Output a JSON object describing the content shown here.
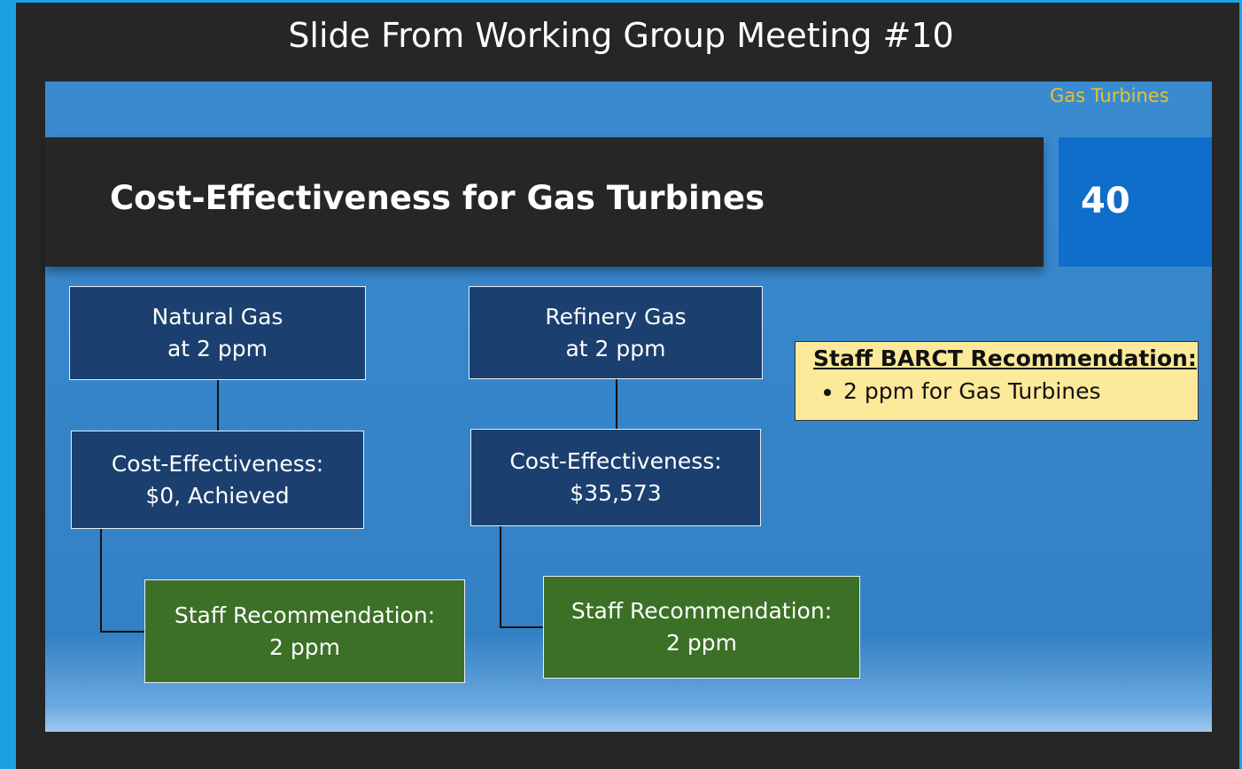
{
  "header": {
    "title": "Slide From Working Group Meeting #10"
  },
  "slide": {
    "tag": "Gas Turbines",
    "title": "Cost-Effectiveness for Gas Turbines",
    "number": "40",
    "nodes": [
      {
        "lines": [
          "Natural Gas",
          "at 2 ppm"
        ]
      },
      {
        "lines": [
          "Cost-Effectiveness:",
          "$0, Achieved"
        ]
      },
      {
        "lines": [
          "Staff Recommendation:",
          "2 ppm"
        ]
      },
      {
        "lines": [
          "Refinery Gas",
          "at 2 ppm"
        ]
      },
      {
        "lines": [
          "Cost-Effectiveness:",
          "$35,573"
        ]
      },
      {
        "lines": [
          "Staff Recommendation:",
          "2 ppm"
        ]
      }
    ],
    "recommendation": {
      "heading": "Staff BARCT Recommendation:",
      "items": [
        "2 ppm for Gas Turbines"
      ]
    }
  }
}
